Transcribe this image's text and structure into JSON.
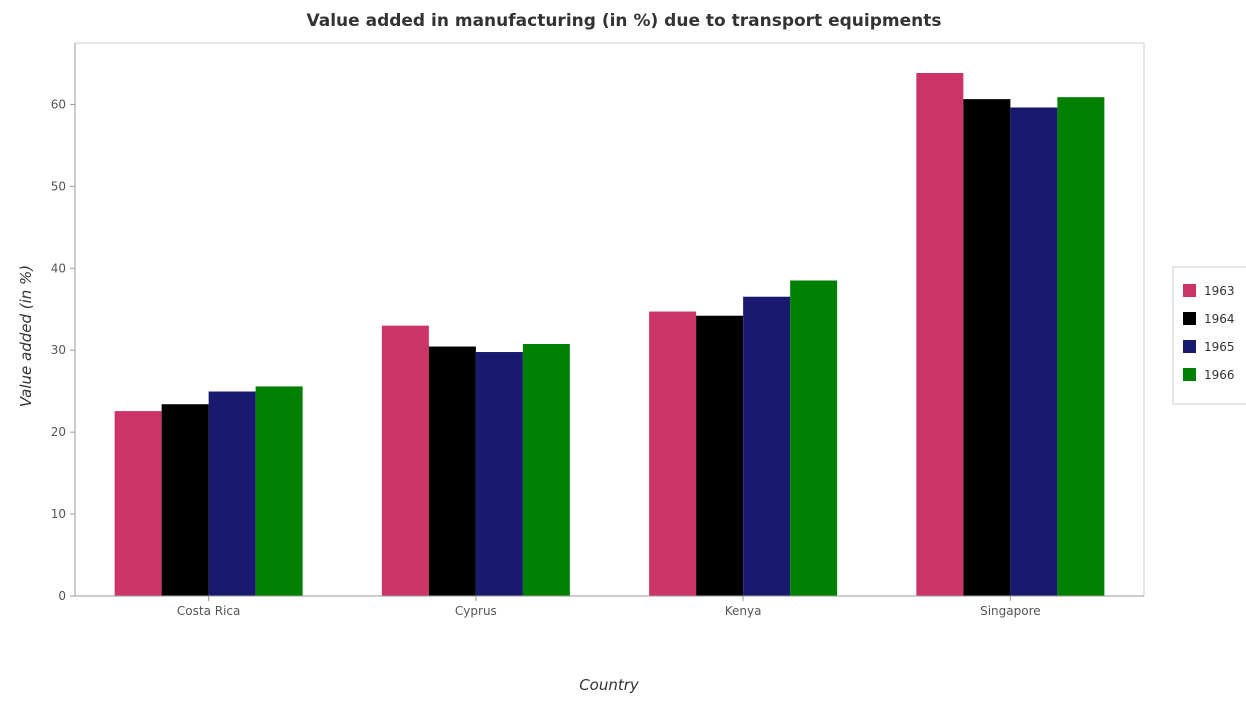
{
  "chart_data": {
    "type": "bar",
    "title": "Value added in manufacturing (in %) due to transport equipments",
    "xlabel": "Country",
    "ylabel": "Value added (in %)",
    "categories": [
      "Costa Rica",
      "Cyprus",
      "Kenya",
      "Singapore"
    ],
    "series": [
      {
        "name": "1963",
        "color": "#cc3366",
        "values": [
          22.57,
          33.0,
          34.72,
          63.84
        ]
      },
      {
        "name": "1964",
        "color": "#000000",
        "values": [
          23.41,
          30.45,
          34.21,
          60.65
        ]
      },
      {
        "name": "1965",
        "color": "#191970",
        "values": [
          24.96,
          29.78,
          36.53,
          59.63
        ]
      },
      {
        "name": "1966",
        "color": "#008000",
        "values": [
          25.58,
          30.76,
          38.51,
          60.89
        ]
      }
    ],
    "ylim": [
      0,
      67.5
    ],
    "yticks": [
      0,
      10,
      20,
      30,
      40,
      50,
      60
    ],
    "grid": false,
    "legend": "right"
  }
}
